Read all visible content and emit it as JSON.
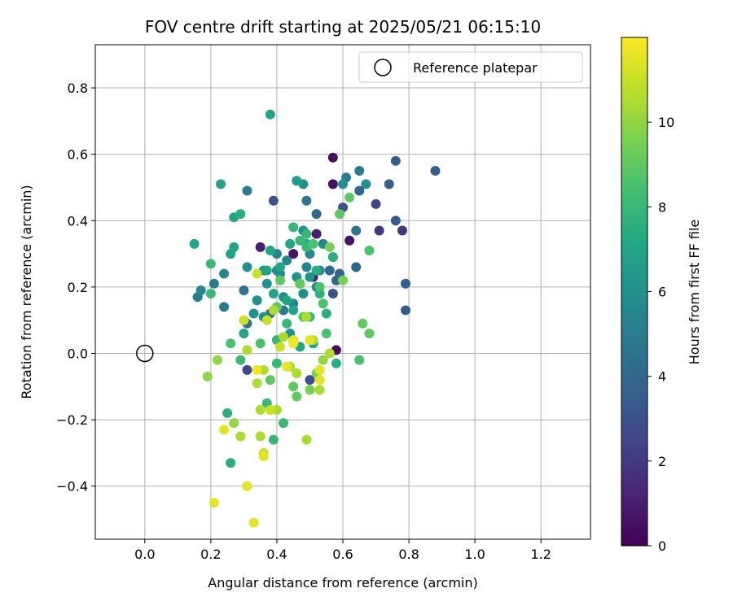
{
  "chart_data": {
    "type": "scatter",
    "title": "FOV centre drift starting at 2025/05/21 06:15:10",
    "xlabel": "Angular distance from reference (arcmin)",
    "ylabel": "Rotation from reference (arcmin)",
    "xlim": [
      -0.15,
      1.35
    ],
    "ylim": [
      -0.56,
      0.93
    ],
    "x_ticks": [
      "0.0",
      "0.2",
      "0.4",
      "0.6",
      "0.8",
      "1.0",
      "1.2"
    ],
    "y_ticks": [
      "−0.4",
      "−0.2",
      "0.0",
      "0.2",
      "0.4",
      "0.6",
      "0.8"
    ],
    "grid": true,
    "legend": {
      "placement": "top-right",
      "entries": [
        "Reference platepar"
      ]
    },
    "colorbar": {
      "label": "Hours from first FF file",
      "range": [
        0,
        12
      ],
      "ticks": [
        "0",
        "2",
        "4",
        "6",
        "8",
        "10"
      ],
      "colormap": "viridis"
    },
    "reference_point": {
      "x": 0.0,
      "y": 0.0
    },
    "points": [
      [
        0.57,
        0.59,
        0.5
      ],
      [
        0.57,
        0.51,
        0.5
      ],
      [
        0.62,
        0.34,
        0.6
      ],
      [
        0.58,
        0.01,
        0.3
      ],
      [
        0.45,
        0.3,
        0.7
      ],
      [
        0.35,
        0.32,
        1.0
      ],
      [
        0.52,
        0.36,
        1.0
      ],
      [
        0.51,
        0.23,
        1.2
      ],
      [
        0.71,
        0.37,
        2.0
      ],
      [
        0.78,
        0.37,
        2.0
      ],
      [
        0.7,
        0.45,
        2.5
      ],
      [
        0.6,
        0.44,
        3.0
      ],
      [
        0.39,
        0.46,
        3.0
      ],
      [
        0.31,
        -0.05,
        2.5
      ],
      [
        0.57,
        0.18,
        3.0
      ],
      [
        0.5,
        -0.08,
        3.0
      ],
      [
        0.88,
        0.55,
        3.5
      ],
      [
        0.76,
        0.58,
        3.5
      ],
      [
        0.74,
        0.51,
        3.5
      ],
      [
        0.79,
        0.21,
        3.5
      ],
      [
        0.79,
        0.13,
        3.5
      ],
      [
        0.76,
        0.4,
        3.5
      ],
      [
        0.65,
        0.49,
        4.0
      ],
      [
        0.64,
        0.26,
        4.0
      ],
      [
        0.52,
        0.42,
        4.0
      ],
      [
        0.49,
        0.46,
        4.5
      ],
      [
        0.56,
        0.25,
        4.0
      ],
      [
        0.58,
        0.22,
        4.0
      ],
      [
        0.59,
        0.24,
        4.0
      ],
      [
        0.3,
        0.19,
        4.5
      ],
      [
        0.31,
        0.09,
        4.5
      ],
      [
        0.38,
        0.12,
        4.5
      ],
      [
        0.42,
        0.13,
        5.0
      ],
      [
        0.24,
        0.14,
        5.0
      ],
      [
        0.16,
        0.17,
        5.0
      ],
      [
        0.17,
        0.19,
        5.5
      ],
      [
        0.21,
        0.21,
        5.0
      ],
      [
        0.24,
        0.24,
        5.5
      ],
      [
        0.31,
        0.49,
        5.0
      ],
      [
        0.61,
        0.53,
        5.0
      ],
      [
        0.65,
        0.55,
        5.0
      ],
      [
        0.64,
        0.37,
        4.8
      ],
      [
        0.67,
        0.51,
        6.0
      ],
      [
        0.6,
        0.51,
        6.0
      ],
      [
        0.4,
        0.3,
        5.5
      ],
      [
        0.41,
        0.24,
        5.5
      ],
      [
        0.43,
        0.28,
        5.5
      ],
      [
        0.45,
        0.15,
        5.5
      ],
      [
        0.49,
        0.26,
        5.5
      ],
      [
        0.5,
        0.3,
        5.5
      ],
      [
        0.53,
        0.25,
        5.5
      ],
      [
        0.54,
        0.33,
        5.5
      ],
      [
        0.57,
        0.29,
        5.5
      ],
      [
        0.48,
        0.37,
        6.0
      ],
      [
        0.48,
        0.51,
        6.0
      ],
      [
        0.36,
        0.25,
        6.0
      ],
      [
        0.34,
        0.16,
        6.0
      ],
      [
        0.36,
        0.11,
        6.0
      ],
      [
        0.33,
        0.12,
        6.0
      ],
      [
        0.31,
        0.26,
        6.0
      ],
      [
        0.37,
        0.21,
        6.0
      ],
      [
        0.4,
        0.25,
        6.0
      ],
      [
        0.42,
        0.17,
        6.0
      ],
      [
        0.44,
        0.06,
        6.0
      ],
      [
        0.46,
        0.23,
        6.0
      ],
      [
        0.48,
        0.18,
        6.0
      ],
      [
        0.5,
        0.23,
        6.0
      ],
      [
        0.52,
        0.2,
        6.0
      ],
      [
        0.46,
        0.52,
        6.5
      ],
      [
        0.38,
        0.72,
        7.0
      ],
      [
        0.23,
        0.51,
        7.0
      ],
      [
        0.15,
        0.33,
        7.0
      ],
      [
        0.27,
        0.32,
        7.0
      ],
      [
        0.27,
        0.41,
        7.0
      ],
      [
        0.29,
        0.42,
        7.5
      ],
      [
        0.26,
        0.3,
        7.0
      ],
      [
        0.3,
        0.06,
        7.0
      ],
      [
        0.37,
        0.25,
        7.0
      ],
      [
        0.38,
        0.31,
        7.0
      ],
      [
        0.39,
        0.18,
        7.0
      ],
      [
        0.41,
        0.26,
        7.0
      ],
      [
        0.43,
        0.16,
        7.0
      ],
      [
        0.44,
        0.33,
        7.0
      ],
      [
        0.45,
        0.13,
        7.0
      ],
      [
        0.47,
        0.02,
        7.0
      ],
      [
        0.49,
        0.33,
        7.0
      ],
      [
        0.51,
        0.03,
        7.0
      ],
      [
        0.52,
        0.25,
        7.5
      ],
      [
        0.53,
        0.18,
        7.5
      ],
      [
        0.55,
        0.12,
        7.5
      ],
      [
        0.57,
        0.29,
        7.5
      ],
      [
        0.58,
        -0.03,
        7.5
      ],
      [
        0.25,
        -0.18,
        7.5
      ],
      [
        0.26,
        -0.33,
        7.5
      ],
      [
        0.29,
        -0.02,
        8.0
      ],
      [
        0.37,
        -0.15,
        8.0
      ],
      [
        0.39,
        -0.26,
        8.0
      ],
      [
        0.4,
        -0.03,
        8.0
      ],
      [
        0.4,
        0.04,
        8.0
      ],
      [
        0.42,
        -0.21,
        8.0
      ],
      [
        0.43,
        0.09,
        8.0
      ],
      [
        0.45,
        0.38,
        8.0
      ],
      [
        0.47,
        0.34,
        8.0
      ],
      [
        0.47,
        0.21,
        8.0
      ],
      [
        0.49,
        0.32,
        8.0
      ],
      [
        0.49,
        0.36,
        8.0
      ],
      [
        0.5,
        0.11,
        8.0
      ],
      [
        0.51,
        0.33,
        8.5
      ],
      [
        0.53,
        0.2,
        8.5
      ],
      [
        0.54,
        0.15,
        8.5
      ],
      [
        0.55,
        0.06,
        8.5
      ],
      [
        0.56,
        0.32,
        9.5
      ],
      [
        0.59,
        0.42,
        9.0
      ],
      [
        0.6,
        0.22,
        9.5
      ],
      [
        0.62,
        0.47,
        9.0
      ],
      [
        0.66,
        0.09,
        9.0
      ],
      [
        0.68,
        0.06,
        9.0
      ],
      [
        0.65,
        -0.02,
        8.5
      ],
      [
        0.68,
        0.31,
        8.5
      ],
      [
        0.2,
        0.18,
        8.0
      ],
      [
        0.2,
        0.27,
        8.0
      ],
      [
        0.26,
        0.03,
        8.5
      ],
      [
        0.35,
        0.03,
        8.5
      ],
      [
        0.38,
        -0.08,
        9.0
      ],
      [
        0.4,
        0.14,
        9.0
      ],
      [
        0.41,
        0.22,
        9.0
      ],
      [
        0.45,
        -0.1,
        9.0
      ],
      [
        0.46,
        -0.13,
        9.0
      ],
      [
        0.47,
        0.21,
        9.0
      ],
      [
        0.48,
        0.11,
        9.0
      ],
      [
        0.5,
        -0.11,
        9.5
      ],
      [
        0.52,
        -0.06,
        9.5
      ],
      [
        0.54,
        -0.02,
        10.0
      ],
      [
        0.22,
        -0.02,
        10.0
      ],
      [
        0.19,
        -0.07,
        10.0
      ],
      [
        0.27,
        -0.21,
        10.0
      ],
      [
        0.29,
        -0.25,
        10.5
      ],
      [
        0.31,
        0.01,
        10.5
      ],
      [
        0.34,
        -0.09,
        10.5
      ],
      [
        0.35,
        -0.17,
        10.5
      ],
      [
        0.35,
        -0.25,
        10.5
      ],
      [
        0.36,
        -0.05,
        10.5
      ],
      [
        0.39,
        0.13,
        10.5
      ],
      [
        0.4,
        -0.17,
        10.5
      ],
      [
        0.42,
        0.05,
        10.5
      ],
      [
        0.44,
        -0.04,
        10.5
      ],
      [
        0.46,
        -0.06,
        10.5
      ],
      [
        0.49,
        -0.26,
        10.5
      ],
      [
        0.49,
        0.11,
        10.5
      ],
      [
        0.51,
        0.04,
        10.5
      ],
      [
        0.53,
        -0.11,
        10.5
      ],
      [
        0.56,
        0.0,
        10.5
      ],
      [
        0.3,
        0.1,
        11.0
      ],
      [
        0.34,
        0.24,
        11.0
      ],
      [
        0.36,
        -0.3,
        11.0
      ],
      [
        0.37,
        0.1,
        11.0
      ],
      [
        0.38,
        -0.17,
        11.0
      ],
      [
        0.41,
        0.02,
        11.0
      ],
      [
        0.43,
        -0.04,
        11.5
      ],
      [
        0.45,
        0.04,
        11.5
      ],
      [
        0.53,
        -0.05,
        11.5
      ],
      [
        0.53,
        -0.08,
        11.5
      ],
      [
        0.5,
        0.04,
        11.5
      ],
      [
        0.24,
        -0.23,
        11.5
      ],
      [
        0.21,
        -0.45,
        11.5
      ],
      [
        0.31,
        -0.4,
        11.5
      ],
      [
        0.33,
        -0.51,
        11.5
      ],
      [
        0.36,
        -0.31,
        11.5
      ],
      [
        0.34,
        -0.05,
        11.8
      ],
      [
        0.45,
        0.03,
        11.8
      ]
    ]
  }
}
